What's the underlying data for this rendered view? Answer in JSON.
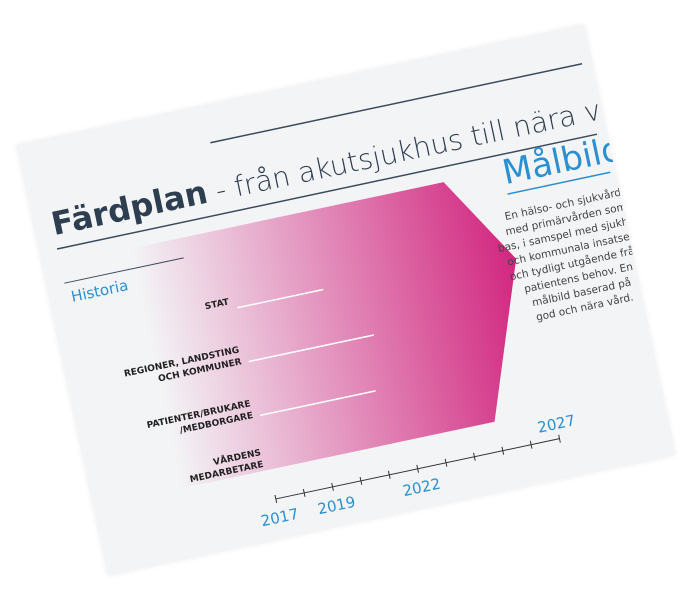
{
  "header": {
    "title": "Färdplan",
    "subtitle": " - från akutsjukhus till nära vård"
  },
  "history": {
    "label": "Historia",
    "rows": [
      [
        "STAT"
      ],
      [
        "REGIONER, LANDSTING",
        "OCH KOMMUNER"
      ],
      [
        "PATIENTER/BRUKARE",
        "/MEDBORGARE"
      ],
      [
        "VÅRDENS",
        "MEDARBETARE"
      ]
    ]
  },
  "timeline": {
    "years": [
      "2017",
      "2019",
      "2022",
      "2027"
    ]
  },
  "goal": {
    "title": "Målbild",
    "text": [
      "En hälso- och sjukvård",
      "med primärvården som",
      "bas, i samspel med sjukhus",
      "och kommunala insatser,",
      "och tydligt utgående från",
      "patientens behov. En",
      "målbild baserad på",
      "god och nära vård."
    ]
  }
}
